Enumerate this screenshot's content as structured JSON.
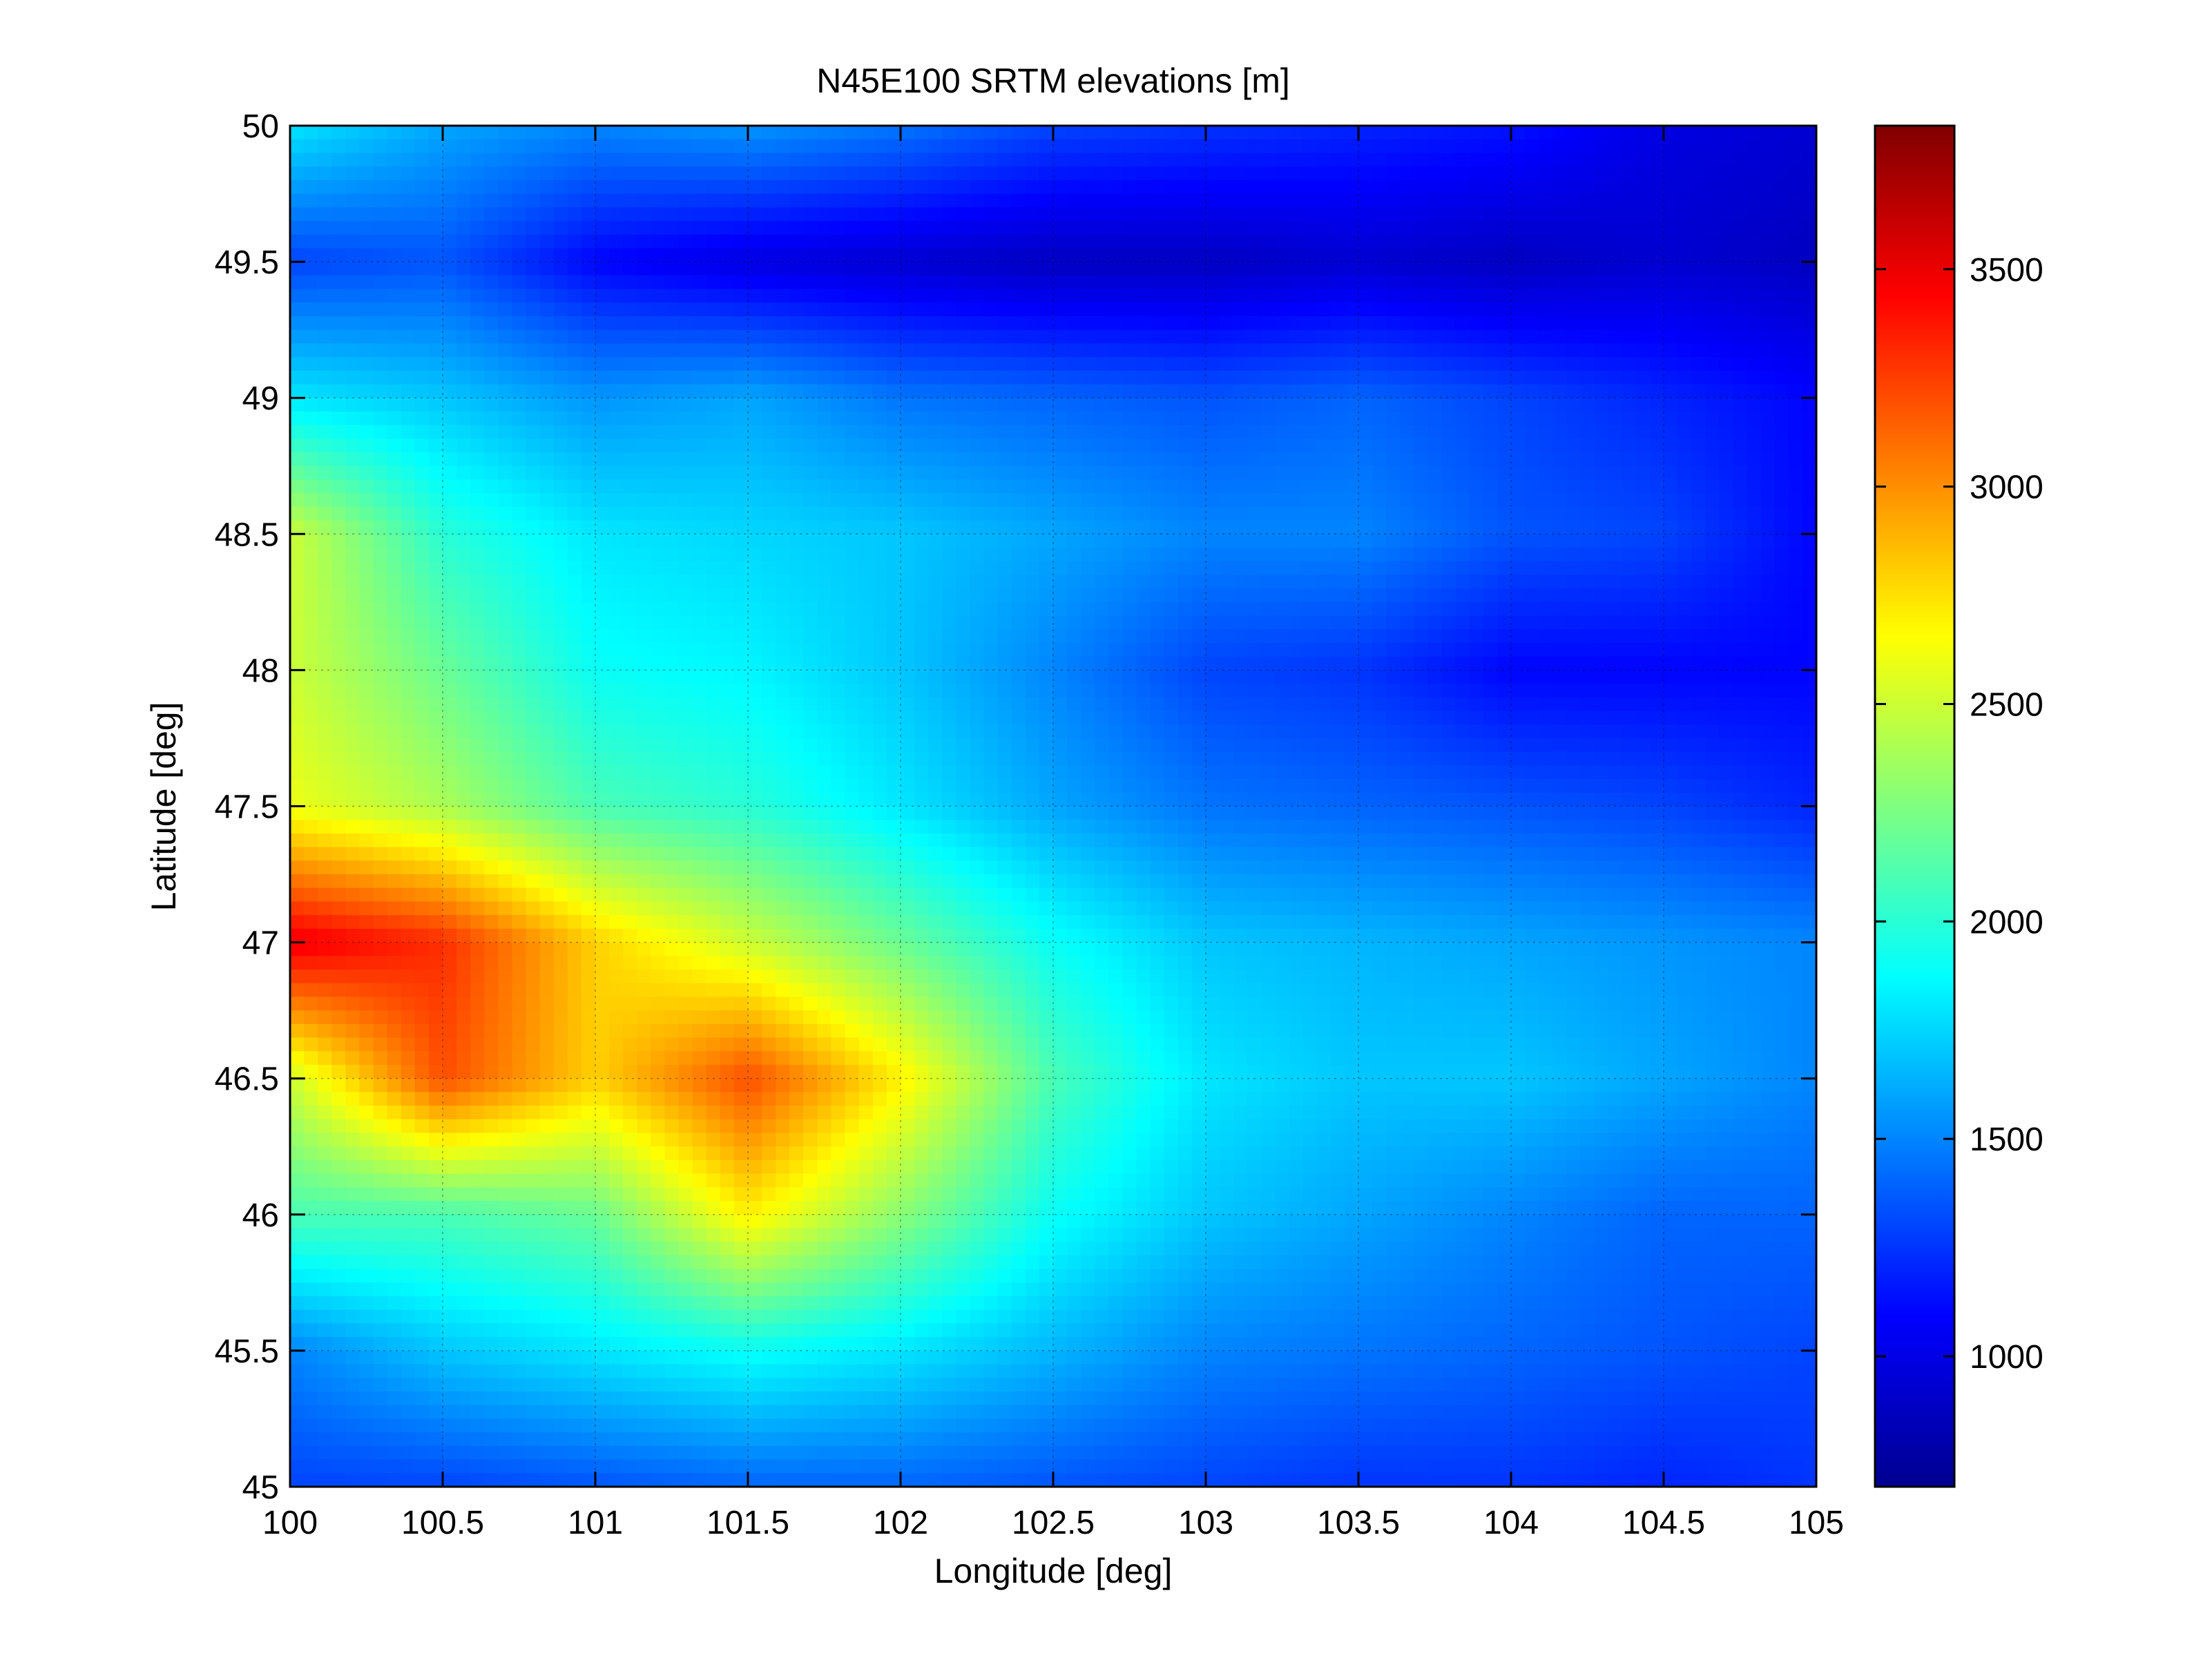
{
  "chart_data": {
    "type": "heatmap",
    "title": "N45E100 SRTM elevations [m]",
    "xlabel": "Longitude [deg]",
    "ylabel": "Latitude [deg]",
    "xlim": [
      100,
      105
    ],
    "ylim": [
      45,
      50
    ],
    "x_ticks": [
      100,
      100.5,
      101,
      101.5,
      102,
      102.5,
      103,
      103.5,
      104,
      104.5,
      105
    ],
    "x_tick_labels": [
      "100",
      "100.5",
      "101",
      "101.5",
      "102",
      "102.5",
      "103",
      "103.5",
      "104",
      "104.5",
      "105"
    ],
    "y_ticks": [
      45,
      45.5,
      46,
      46.5,
      47,
      47.5,
      48,
      48.5,
      49,
      49.5,
      50
    ],
    "y_tick_labels": [
      "45",
      "45.5",
      "46",
      "46.5",
      "47",
      "47.5",
      "48",
      "48.5",
      "49",
      "49.5",
      "50"
    ],
    "grid": true,
    "colormap": "jet",
    "colorbar": {
      "range": [
        700,
        3830
      ],
      "ticks": [
        1000,
        1500,
        2000,
        2500,
        3000,
        3500
      ],
      "tick_labels": [
        "1000",
        "1500",
        "2000",
        "2500",
        "3000",
        "3500"
      ],
      "placement": "right"
    },
    "grid_lon": [
      100,
      100.5,
      101,
      101.5,
      102,
      102.5,
      103,
      103.5,
      104,
      104.5,
      105
    ],
    "grid_lat": [
      50,
      49.5,
      49,
      48.5,
      48,
      47.5,
      47,
      46.5,
      46,
      45.5,
      45
    ],
    "elevation_grid_m": [
      [
        1800,
        1600,
        1500,
        1550,
        1450,
        1300,
        1250,
        1200,
        1150,
        1000,
        950
      ],
      [
        1300,
        1350,
        1100,
        1000,
        950,
        900,
        900,
        950,
        900,
        950,
        900
      ],
      [
        1800,
        1700,
        1550,
        1600,
        1450,
        1400,
        1350,
        1400,
        1300,
        1200,
        1100
      ],
      [
        2500,
        2000,
        1800,
        1750,
        1700,
        1600,
        1500,
        1500,
        1350,
        1300,
        1100
      ],
      [
        2500,
        2200,
        1900,
        1850,
        1700,
        1500,
        1300,
        1250,
        1100,
        1100,
        1100
      ],
      [
        2600,
        2400,
        2100,
        2000,
        1800,
        1600,
        1450,
        1400,
        1350,
        1300,
        1200
      ],
      [
        3500,
        3300,
        2800,
        2500,
        2200,
        1900,
        1700,
        1650,
        1600,
        1550,
        1500
      ],
      [
        2500,
        3200,
        2800,
        3200,
        2700,
        2100,
        1800,
        1700,
        1700,
        1600,
        1500
      ],
      [
        2100,
        2100,
        2200,
        2700,
        2300,
        1900,
        1700,
        1600,
        1500,
        1400,
        1400
      ],
      [
        1500,
        1700,
        1800,
        1900,
        1800,
        1650,
        1500,
        1450,
        1400,
        1350,
        1300
      ],
      [
        1300,
        1300,
        1350,
        1400,
        1400,
        1350,
        1300,
        1250,
        1250,
        1200,
        1250
      ]
    ]
  }
}
